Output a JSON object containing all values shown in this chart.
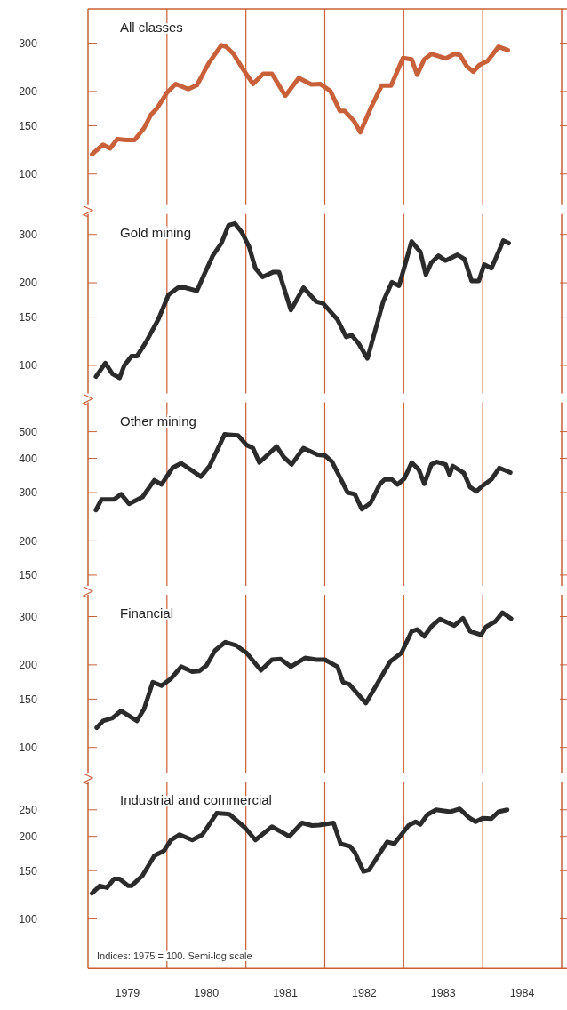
{
  "chart_data": [
    {
      "type": "line",
      "title": "All classes",
      "log": "y",
      "tick_labels": "y",
      "xlim": [
        1979,
        1985
      ],
      "ylim": [
        77,
        400
      ],
      "yticks": [
        100,
        150,
        200,
        300
      ],
      "ref_lines": [
        {
          "axis": "x",
          "value": 1980,
          "color": "#c8603a"
        },
        {
          "axis": "x",
          "value": 1981,
          "color": "#c8603a"
        },
        {
          "axis": "x",
          "value": 1982,
          "color": "#c8603a"
        },
        {
          "axis": "x",
          "value": 1983,
          "color": "#c8603a"
        },
        {
          "axis": "x",
          "value": 1984,
          "color": "#c8603a"
        }
      ],
      "series": [
        {
          "color": "#c8603a",
          "x": [
            1979.05,
            1979.19,
            1979.28,
            1979.37,
            1979.49,
            1979.59,
            1979.71,
            1979.8,
            1979.87,
            1980.0,
            1980.11,
            1980.27,
            1980.38,
            1980.53,
            1980.69,
            1980.75,
            1980.84,
            1980.96,
            1981.09,
            1981.22,
            1981.33,
            1981.5,
            1981.67,
            1981.83,
            1981.94,
            1982.07,
            1982.19,
            1982.25,
            1982.37,
            1982.45,
            1982.59,
            1982.72,
            1982.84,
            1982.99,
            1983.1,
            1983.17,
            1983.26,
            1983.35,
            1983.53,
            1983.64,
            1983.71,
            1983.8,
            1983.88,
            1983.96,
            1984.06,
            1984.2,
            1984.32
          ],
          "values": [
            118,
            128,
            124,
            134,
            133,
            133,
            147,
            165,
            173,
            198,
            213,
            204,
            211,
            254,
            295,
            291,
            275,
            242,
            213,
            232,
            232,
            193,
            224,
            212,
            213,
            201,
            170,
            170,
            156,
            142,
            176,
            210,
            210,
            265,
            262,
            230,
            262,
            274,
            264,
            274,
            272,
            247,
            236,
            250,
            258,
            291,
            283
          ]
        }
      ]
    },
    {
      "type": "line",
      "title": "Gold mining",
      "log": "y",
      "tick_labels": "y",
      "xlim": [
        1979,
        1985
      ],
      "ylim": [
        79,
        356
      ],
      "yticks": [
        100,
        150,
        200,
        300
      ],
      "ref_lines": [
        {
          "axis": "x",
          "value": 1980,
          "color": "#c8603a"
        },
        {
          "axis": "x",
          "value": 1981,
          "color": "#c8603a"
        },
        {
          "axis": "x",
          "value": 1982,
          "color": "#c8603a"
        },
        {
          "axis": "x",
          "value": 1983,
          "color": "#c8603a"
        },
        {
          "axis": "x",
          "value": 1984,
          "color": "#c8603a"
        }
      ],
      "series": [
        {
          "color": "#2b2b2b",
          "x": [
            1979.1,
            1979.22,
            1979.31,
            1979.4,
            1979.46,
            1979.55,
            1979.62,
            1979.73,
            1979.89,
            1980.02,
            1980.14,
            1980.23,
            1980.38,
            1980.47,
            1980.58,
            1980.69,
            1980.78,
            1980.86,
            1980.95,
            1981.04,
            1981.12,
            1981.21,
            1981.35,
            1981.42,
            1981.57,
            1981.73,
            1981.89,
            1981.98,
            1982.16,
            1982.27,
            1982.34,
            1982.43,
            1982.54,
            1982.74,
            1982.85,
            1982.94,
            1983.1,
            1983.21,
            1983.28,
            1983.35,
            1983.44,
            1983.53,
            1983.68,
            1983.77,
            1983.86,
            1983.95,
            1984.02,
            1984.11,
            1984.22,
            1984.26,
            1984.33
          ],
          "values": [
            91,
            102,
            93,
            90,
            100,
            108,
            108,
            121,
            147,
            181,
            192,
            192,
            187,
            214,
            251,
            279,
            324,
            329,
            305,
            271,
            226,
            210,
            219,
            219,
            159,
            192,
            171,
            168,
            147,
            127,
            129,
            120,
            106,
            171,
            201,
            195,
            283,
            259,
            214,
            237,
            251,
            241,
            253,
            244,
            203,
            203,
            233,
            226,
            267,
            285,
            279
          ]
        }
      ]
    },
    {
      "type": "line",
      "title": "Other mining",
      "log": "y",
      "tick_labels": "y",
      "xlim": [
        1979,
        1985
      ],
      "ylim": [
        137,
        640
      ],
      "yticks": [
        150,
        200,
        300,
        400,
        500
      ],
      "ref_lines": [
        {
          "axis": "x",
          "value": 1980,
          "color": "#c8603a"
        },
        {
          "axis": "x",
          "value": 1981,
          "color": "#c8603a"
        },
        {
          "axis": "x",
          "value": 1982,
          "color": "#c8603a"
        },
        {
          "axis": "x",
          "value": 1983,
          "color": "#c8603a"
        },
        {
          "axis": "x",
          "value": 1984,
          "color": "#c8603a"
        }
      ],
      "series": [
        {
          "color": "#2b2b2b",
          "x": [
            1979.1,
            1979.17,
            1979.33,
            1979.42,
            1979.52,
            1979.69,
            1979.84,
            1979.93,
            1980.07,
            1980.18,
            1980.43,
            1980.54,
            1980.73,
            1980.9,
            1981.01,
            1981.09,
            1981.17,
            1981.39,
            1981.48,
            1981.58,
            1981.73,
            1981.91,
            1982.0,
            1982.09,
            1982.29,
            1982.38,
            1982.47,
            1982.58,
            1982.7,
            1982.76,
            1982.85,
            1982.92,
            1983.01,
            1983.1,
            1983.19,
            1983.26,
            1983.35,
            1983.42,
            1983.53,
            1983.58,
            1983.62,
            1983.76,
            1983.84,
            1983.92,
            1984.0,
            1984.11,
            1984.21,
            1984.35
          ],
          "values": [
            259,
            283,
            283,
            296,
            273,
            289,
            333,
            321,
            369,
            384,
            343,
            375,
            489,
            485,
            447,
            436,
            386,
            442,
            404,
            380,
            436,
            412,
            410,
            389,
            300,
            296,
            261,
            275,
            323,
            335,
            335,
            321,
            338,
            386,
            364,
            323,
            380,
            388,
            380,
            348,
            375,
            354,
            314,
            303,
            318,
            335,
            369,
            355
          ]
        }
      ]
    },
    {
      "type": "line",
      "title": "Financial",
      "log": "y",
      "tick_labels": "y",
      "xlim": [
        1979,
        1985
      ],
      "ylim": [
        81,
        360
      ],
      "yticks": [
        100,
        150,
        200,
        300
      ],
      "ref_lines": [
        {
          "axis": "x",
          "value": 1980,
          "color": "#c8603a"
        },
        {
          "axis": "x",
          "value": 1981,
          "color": "#c8603a"
        },
        {
          "axis": "x",
          "value": 1982,
          "color": "#c8603a"
        },
        {
          "axis": "x",
          "value": 1983,
          "color": "#c8603a"
        },
        {
          "axis": "x",
          "value": 1984,
          "color": "#c8603a"
        }
      ],
      "series": [
        {
          "color": "#2b2b2b",
          "x": [
            1979.11,
            1979.19,
            1979.31,
            1979.42,
            1979.62,
            1979.71,
            1979.82,
            1979.93,
            1980.05,
            1980.18,
            1980.32,
            1980.41,
            1980.5,
            1980.61,
            1980.74,
            1980.88,
            1981.01,
            1981.19,
            1981.33,
            1981.44,
            1981.57,
            1981.75,
            1981.89,
            1982.0,
            1982.16,
            1982.23,
            1982.31,
            1982.52,
            1982.65,
            1982.83,
            1982.97,
            1983.1,
            1983.17,
            1983.26,
            1983.35,
            1983.46,
            1983.64,
            1983.75,
            1983.84,
            1983.98,
            1984.04,
            1984.16,
            1984.25,
            1984.36
          ],
          "values": [
            118,
            125,
            128,
            136,
            125,
            138,
            173,
            168,
            178,
            197,
            189,
            190,
            199,
            226,
            242,
            235,
            221,
            191,
            209,
            210,
            197,
            212,
            209,
            209,
            197,
            173,
            170,
            145,
            168,
            206,
            221,
            265,
            269,
            254,
            276,
            294,
            278,
            296,
            265,
            257,
            275,
            288,
            310,
            295
          ]
        }
      ]
    },
    {
      "type": "line",
      "title": "Industrial and commercial",
      "log": "y",
      "xlim": [
        1979,
        1985
      ],
      "ylim": [
        66,
        317
      ],
      "yticks": [
        100,
        150,
        200,
        250
      ],
      "xticks": [
        {
          "value": 1979.5,
          "label": "1979"
        },
        {
          "value": 1980.5,
          "label": "1980"
        },
        {
          "value": 1981.5,
          "label": "1981"
        },
        {
          "value": 1982.5,
          "label": "1982"
        },
        {
          "value": 1983.5,
          "label": "1983"
        },
        {
          "value": 1984.5,
          "label": "1984"
        }
      ],
      "annotations": [
        "Indices: 1975 = 100. Semi-log scale"
      ],
      "ref_lines": [
        {
          "axis": "x",
          "value": 1980,
          "color": "#c8603a"
        },
        {
          "axis": "x",
          "value": 1981,
          "color": "#c8603a"
        },
        {
          "axis": "x",
          "value": 1982,
          "color": "#c8603a"
        },
        {
          "axis": "x",
          "value": 1983,
          "color": "#c8603a"
        },
        {
          "axis": "x",
          "value": 1984,
          "color": "#c8603a"
        }
      ],
      "series": [
        {
          "color": "#2b2b2b",
          "x": [
            1979.05,
            1979.15,
            1979.24,
            1979.33,
            1979.4,
            1979.51,
            1979.55,
            1979.69,
            1979.84,
            1979.96,
            1980.05,
            1980.16,
            1980.32,
            1980.45,
            1980.63,
            1980.79,
            1980.99,
            1981.12,
            1981.33,
            1981.55,
            1981.71,
            1981.84,
            1981.93,
            1982.11,
            1982.2,
            1982.32,
            1982.38,
            1982.49,
            1982.56,
            1982.79,
            1982.88,
            1983.06,
            1983.15,
            1983.21,
            1983.3,
            1983.41,
            1983.59,
            1983.71,
            1983.82,
            1983.91,
            1984.0,
            1984.11,
            1984.2,
            1984.31
          ],
          "values": [
            124,
            132,
            130,
            140,
            140,
            132,
            132,
            144,
            170,
            177,
            194,
            203,
            194,
            203,
            243,
            241,
            215,
            194,
            217,
            200,
            224,
            219,
            220,
            224,
            188,
            184,
            175,
            149,
            151,
            191,
            188,
            219,
            226,
            221,
            240,
            250,
            246,
            252,
            235,
            226,
            233,
            232,
            246,
            250
          ]
        }
      ]
    }
  ]
}
